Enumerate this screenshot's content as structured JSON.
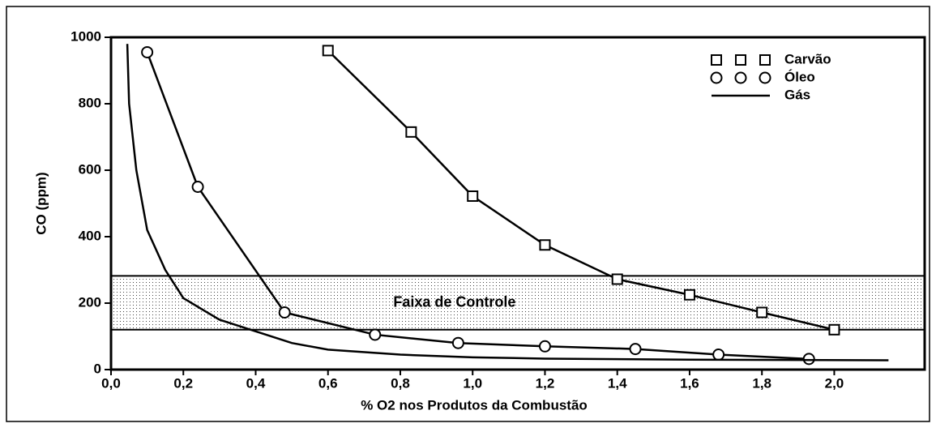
{
  "chart_data": {
    "type": "line",
    "xlabel": "% O2 nos Produtos da Combustão",
    "ylabel": "CO (ppm)",
    "xlim": [
      0,
      2.25
    ],
    "ylim": [
      0,
      1000
    ],
    "xticks": [
      {
        "value": 0,
        "label": "0,0"
      },
      {
        "value": 0.2,
        "label": "0,2"
      },
      {
        "value": 0.4,
        "label": "0,4"
      },
      {
        "value": 0.6,
        "label": "0,6"
      },
      {
        "value": 0.8,
        "label": "0,8"
      },
      {
        "value": 1.0,
        "label": "1,0"
      },
      {
        "value": 1.2,
        "label": "1,2"
      },
      {
        "value": 1.4,
        "label": "1,4"
      },
      {
        "value": 1.6,
        "label": "1,6"
      },
      {
        "value": 1.8,
        "label": "1,8"
      },
      {
        "value": 2.0,
        "label": "2,0"
      }
    ],
    "yticks": [
      0,
      200,
      400,
      600,
      800,
      1000
    ],
    "legend": "upper right",
    "bands": [
      {
        "label": "Faixa de Controle",
        "from": 120,
        "to": 282
      }
    ],
    "series": [
      {
        "name": "Carvão",
        "color": "#000000",
        "marker": "square",
        "x": [
          0.6,
          0.83,
          1.0,
          1.2,
          1.4,
          1.6,
          1.8,
          2.0
        ],
        "values": [
          960,
          715,
          522,
          375,
          272,
          225,
          172,
          120
        ]
      },
      {
        "name": "Óleo",
        "color": "#000000",
        "marker": "circle",
        "x": [
          0.1,
          0.24,
          0.48,
          0.73,
          0.96,
          1.2,
          1.45,
          1.68,
          1.93
        ],
        "values": [
          955,
          550,
          172,
          105,
          80,
          70,
          62,
          45,
          32
        ]
      },
      {
        "name": "Gás",
        "color": "#000000",
        "marker": "none",
        "x": [
          0.045,
          0.05,
          0.07,
          0.1,
          0.15,
          0.2,
          0.3,
          0.4,
          0.5,
          0.6,
          0.8,
          1.0,
          1.2,
          1.6,
          2.15
        ],
        "values": [
          980,
          800,
          600,
          420,
          300,
          215,
          150,
          115,
          80,
          60,
          45,
          37,
          33,
          30,
          28
        ]
      }
    ]
  }
}
